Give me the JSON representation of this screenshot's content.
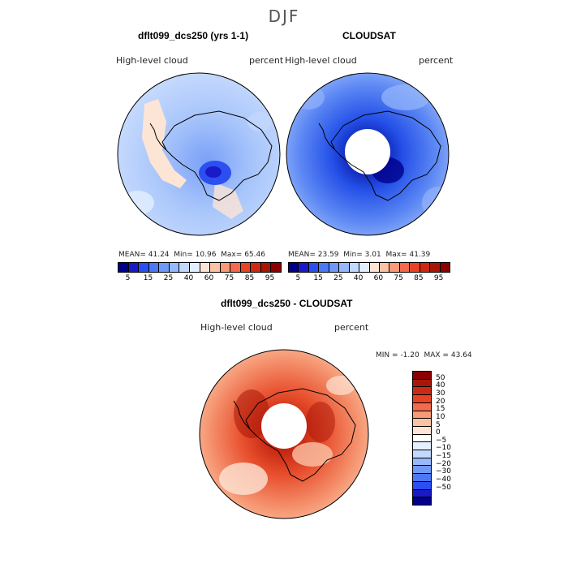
{
  "figure": {
    "title": "DJF"
  },
  "panels": {
    "model": {
      "title": "dflt099_dcs250 (yrs 1-1)",
      "variable": "High-level cloud",
      "units": "percent",
      "mean_label": "MEAN=",
      "mean": "41.24",
      "min_label": "Min=",
      "min": "10.96",
      "max_label": "Max=",
      "max": "65.46"
    },
    "obs": {
      "title": "CLOUDSAT",
      "variable": "High-level cloud",
      "units": "percent",
      "mean_label": "MEAN=",
      "mean": "23.59",
      "min_label": "Min=",
      "min": "3.01",
      "max_label": "Max=",
      "max": "41.39"
    },
    "diff": {
      "title": "dflt099_dcs250 - CLOUDSAT",
      "variable": "High-level cloud",
      "units": "percent",
      "min_label": "MIN =",
      "min": "-1.20",
      "max_label": "MAX =",
      "max": "43.64"
    }
  },
  "colorbar_abs": {
    "colors": [
      "#00008b",
      "#1a1ac8",
      "#2b4ff0",
      "#4c78f5",
      "#6f98f8",
      "#97b8fb",
      "#c3d8fd",
      "#e4efff",
      "#fde5d6",
      "#fbc3a6",
      "#f89a78",
      "#f36a4c",
      "#e84325",
      "#cc2a14",
      "#a81608",
      "#8b0000"
    ],
    "labels": [
      "5",
      "15",
      "25",
      "40",
      "60",
      "75",
      "85",
      "95"
    ]
  },
  "colorbar_diff": {
    "colors": [
      "#8b0000",
      "#a81608",
      "#cc2a14",
      "#e84325",
      "#f36a4c",
      "#f89a78",
      "#fbc3a6",
      "#fde5d6",
      "#ffffff",
      "#e4efff",
      "#c3d8fd",
      "#97b8fb",
      "#6f98f8",
      "#4c78f5",
      "#2b4ff0",
      "#1a1ac8",
      "#00008b"
    ],
    "labels": [
      "50",
      "40",
      "30",
      "20",
      "15",
      "10",
      "5",
      "0",
      "-5",
      "-10",
      "-15",
      "-20",
      "-30",
      "-40",
      "-50"
    ]
  },
  "chart_data": [
    {
      "type": "heatmap",
      "title": "dflt099_dcs250 (yrs 1-1)",
      "variable": "High-level cloud",
      "units": "percent",
      "projection": "south polar stereographic",
      "mean": 41.24,
      "min": 10.96,
      "max": 65.46,
      "levels": [
        5,
        10,
        15,
        20,
        25,
        30,
        40,
        50,
        60,
        70,
        75,
        80,
        85,
        90,
        95
      ]
    },
    {
      "type": "heatmap",
      "title": "CLOUDSAT",
      "variable": "High-level cloud",
      "units": "percent",
      "projection": "south polar stereographic",
      "mean": 23.59,
      "min": 3.01,
      "max": 41.39,
      "levels": [
        5,
        10,
        15,
        20,
        25,
        30,
        40,
        50,
        60,
        70,
        75,
        80,
        85,
        90,
        95
      ]
    },
    {
      "type": "heatmap",
      "title": "dflt099_dcs250 - CLOUDSAT",
      "variable": "High-level cloud",
      "units": "percent",
      "projection": "south polar stereographic",
      "min": -1.2,
      "max": 43.64,
      "levels": [
        -50,
        -40,
        -30,
        -20,
        -15,
        -10,
        -5,
        0,
        5,
        10,
        15,
        20,
        30,
        40,
        50
      ]
    }
  ]
}
